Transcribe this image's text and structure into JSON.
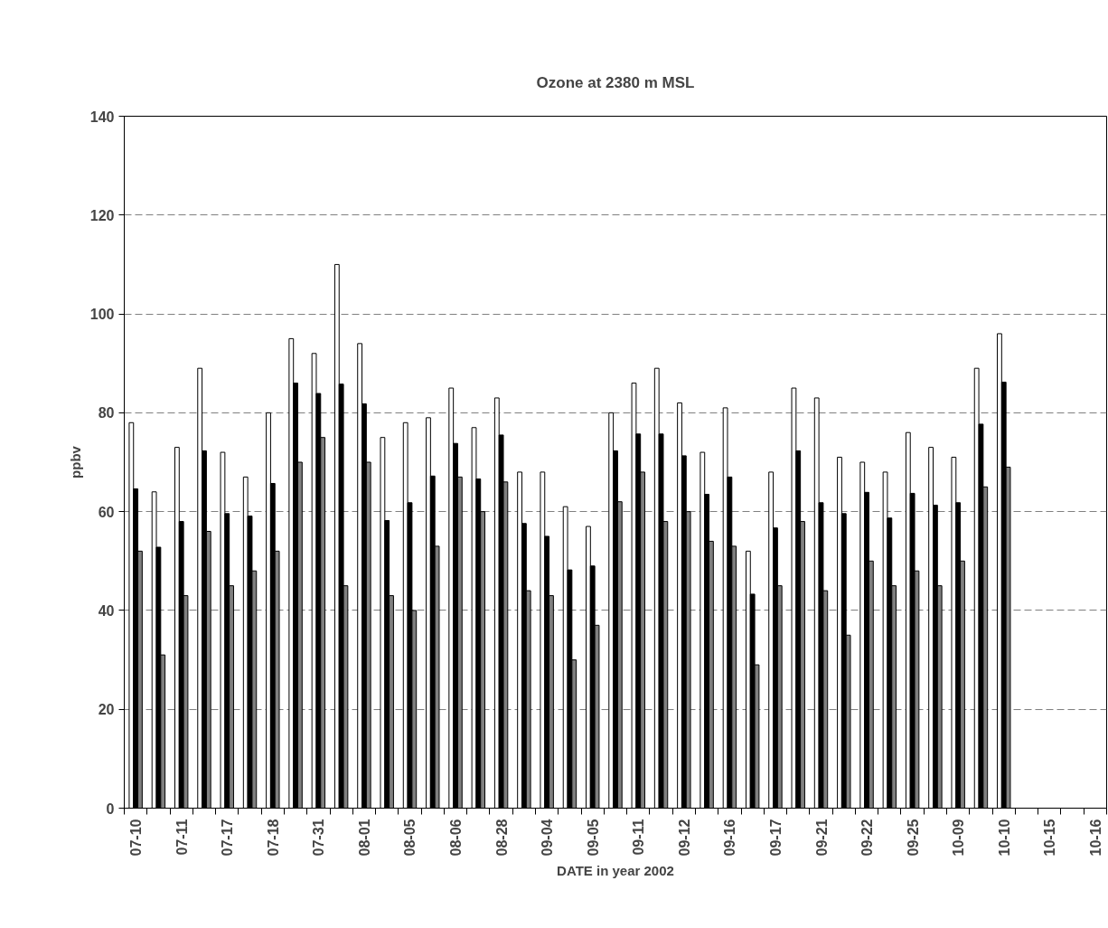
{
  "chart_data": {
    "type": "bar",
    "title": "Ozone at 2380 m MSL",
    "xlabel": "DATE in year 2002",
    "ylabel": "ppbv",
    "categories": [
      "07-10",
      null,
      "07-11",
      null,
      "07-17",
      null,
      "07-18",
      null,
      "07-31",
      null,
      "08-01",
      null,
      "08-05",
      null,
      "08-06",
      null,
      "08-28",
      null,
      "09-04",
      null,
      "09-05",
      null,
      "09-11",
      null,
      "09-12",
      null,
      "09-16",
      null,
      "09-17",
      null,
      "09-21",
      null,
      "09-22",
      null,
      "09-25",
      null,
      "10-09",
      null,
      "10-10",
      null,
      "10-15",
      null,
      "10-16"
    ],
    "series": [
      {
        "color": "#ffffff",
        "values": [
          78,
          64,
          73,
          89,
          72,
          67,
          80,
          95,
          92,
          110,
          94,
          75,
          78,
          79,
          85,
          77,
          83,
          68,
          68,
          61,
          57,
          80,
          86,
          89,
          82,
          72,
          81,
          52,
          68,
          85,
          83,
          71,
          70,
          68,
          76,
          73,
          71,
          89,
          96,
          null,
          null,
          null,
          null
        ]
      },
      {
        "color": "#000000",
        "values": [
          64.6,
          52.8,
          58.0,
          72.3,
          59.6,
          59.1,
          65.7,
          86.0,
          83.9,
          85.8,
          81.8,
          58.2,
          61.8,
          67.2,
          73.8,
          66.6,
          75.5,
          57.6,
          55.0,
          48.2,
          49.0,
          72.3,
          75.7,
          75.7,
          71.3,
          63.5,
          67.0,
          43.3,
          56.7,
          72.3,
          61.8,
          59.6,
          63.9,
          58.7,
          63.7,
          61.3,
          61.8,
          77.7,
          86.2,
          null,
          null,
          null,
          null
        ]
      },
      {
        "color": "#808080",
        "values": [
          52,
          31,
          43,
          56,
          45,
          48,
          52,
          70,
          75,
          45,
          70,
          43,
          40,
          53,
          67,
          60,
          66,
          44,
          43,
          30,
          37,
          62,
          68,
          58,
          60,
          54,
          53,
          29,
          45,
          58,
          44,
          35,
          50,
          45,
          48,
          45,
          50,
          65,
          69,
          null,
          null,
          null,
          null
        ]
      }
    ],
    "ylim": [
      0,
      140
    ],
    "yticks": [
      0,
      20,
      40,
      60,
      80,
      100,
      120,
      140
    ],
    "grid": "y"
  }
}
